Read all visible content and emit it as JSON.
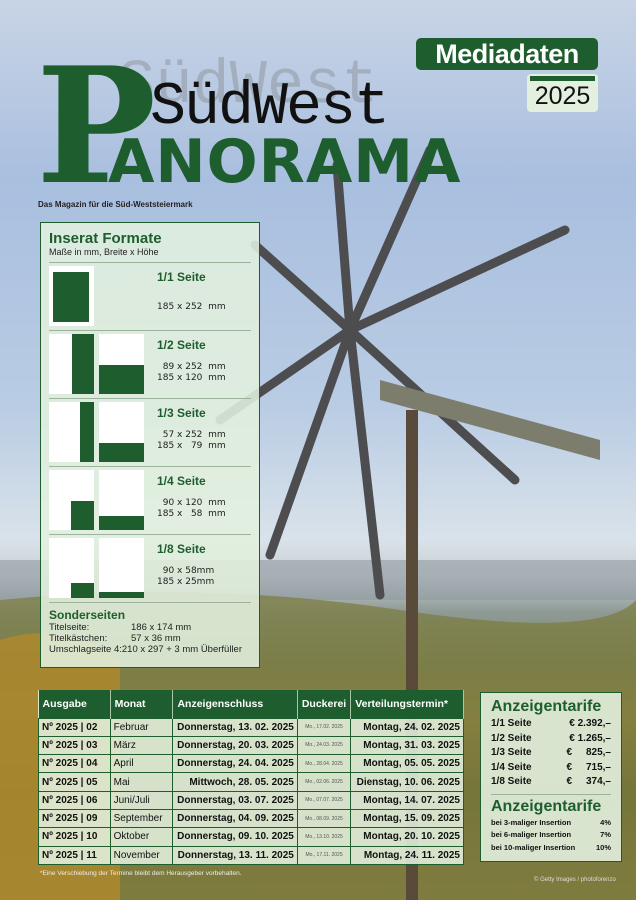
{
  "header": {
    "badge": "Mediadaten",
    "year": "2025",
    "logo_p": "P",
    "logo_sudwest": "SüdWest",
    "logo_anorama": "ANORAMA",
    "tagline": "Das Magazin für die Süd-Weststeiermark"
  },
  "formats": {
    "title": "Inserat Formate",
    "subtitle": "Maße in mm, Breite x Höhe",
    "items": [
      {
        "label": "1/1 Seite",
        "sizes": "185 x 252  mm"
      },
      {
        "label": "1/2 Seite",
        "sizes": "  89 x 252  mm\n185 x 120  mm"
      },
      {
        "label": "1/3 Seite",
        "sizes": "  57 x 252  mm\n185 x   79  mm"
      },
      {
        "label": "1/4 Seite",
        "sizes": "  90 x 120  mm\n185 x   58  mm"
      },
      {
        "label": "1/8 Seite",
        "sizes": "  90 x 58mm\n185 x 25mm"
      }
    ],
    "special": {
      "title": "Sonderseiten",
      "rows": [
        {
          "label": "Titelseite:",
          "value": "186 x 174 mm"
        },
        {
          "label": "Titelkästchen:",
          "value": "  57 x 36 mm"
        },
        {
          "label": "Umschlagseite 4:",
          "value": "210 x 297 + 3 mm Überfüller"
        }
      ]
    }
  },
  "schedule": {
    "headers": [
      "Ausgabe",
      "Monat",
      "Anzeigenschluss",
      "Duckerei",
      "Verteilungstermin*"
    ],
    "rows": [
      [
        "Nº 2025 | 02",
        "Februar",
        "Donnerstag, 13. 02. 2025",
        "Mo., 17.02. 2025",
        "Montag, 24. 02. 2025"
      ],
      [
        "Nº 2025 | 03",
        "März",
        "Donnerstag, 20. 03. 2025",
        "Mo., 24.03. 2025",
        "Montag, 31. 03. 2025"
      ],
      [
        "Nº 2025 | 04",
        "April",
        "Donnerstag, 24. 04. 2025",
        "Mo., 28.04. 2025",
        "Montag, 05. 05. 2025"
      ],
      [
        "Nº 2025 | 05",
        "Mai",
        "Mittwoch, 28. 05. 2025",
        "Mo., 02.06. 2025",
        "Dienstag, 10. 06. 2025"
      ],
      [
        "Nº 2025 | 06",
        "Juni/Juli",
        "Donnerstag, 03. 07. 2025",
        "Mo., 07.07. 2025",
        "Montag, 14. 07. 2025"
      ],
      [
        "Nº 2025 | 09",
        "September",
        "Donnerstag, 04. 09. 2025",
        "Mo., 08.09. 2025",
        "Montag, 15. 09. 2025"
      ],
      [
        "Nº 2025 | 10",
        "Oktober",
        "Donnerstag, 09. 10. 2025",
        "Mo., 13.10. 2025",
        "Montag, 20. 10. 2025"
      ],
      [
        "Nº 2025 | 11",
        "November",
        "Donnerstag, 13. 11. 2025",
        "Mo., 17.11. 2025",
        "Montag, 24. 11. 2025"
      ]
    ],
    "note": "*Eine Verschiebung der Termine bleibt dem Herausgeber vorbehalten."
  },
  "tarif": {
    "title": "Anzeigentarife",
    "prices": [
      {
        "label": "1/1 Seite",
        "value": "€ 2.392,–"
      },
      {
        "label": "1/2 Seite",
        "value": "€ 1.265,–"
      },
      {
        "label": "1/3 Seite",
        "value": "€     825,–"
      },
      {
        "label": "1/4 Seite",
        "value": "€     715,–"
      },
      {
        "label": "1/8 Seite",
        "value": "€     374,–"
      }
    ],
    "title2": "Anzeigentarife",
    "discounts": [
      {
        "label": "bei 3-maliger Insertion",
        "value": "4%"
      },
      {
        "label": "bei 6-maliger Insertion",
        "value": "7%"
      },
      {
        "label": "bei 10-maliger Insertion",
        "value": "10%"
      }
    ]
  },
  "credit": "© Getty Images / photoforenzo",
  "colors": {
    "brand_green": "#1e5e2e",
    "panel": "#e2f0de"
  }
}
